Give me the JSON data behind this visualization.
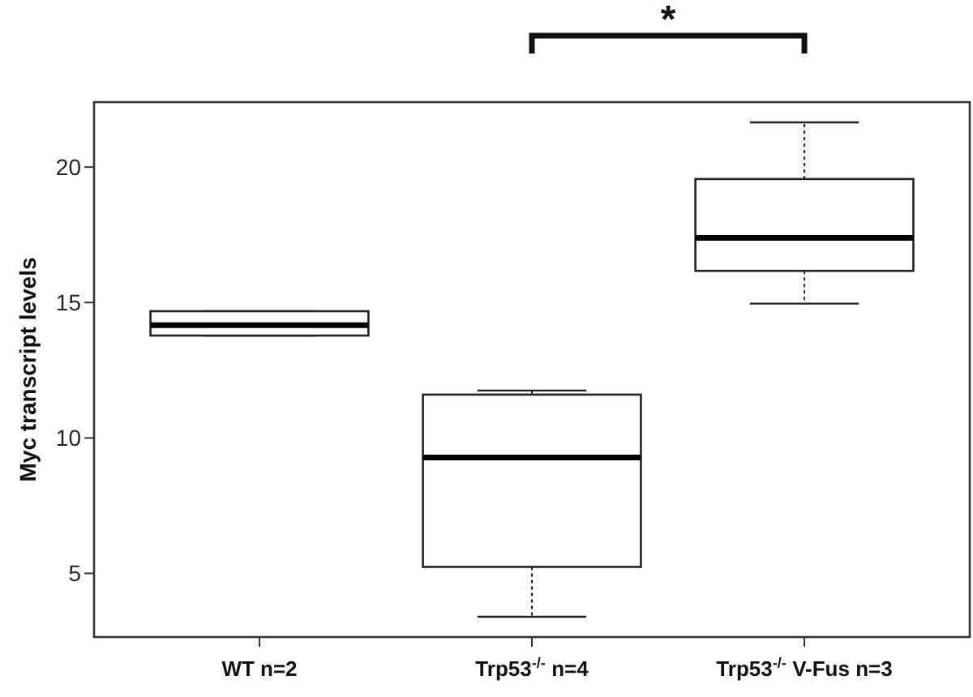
{
  "chart_data": {
    "type": "box",
    "ylabel": "Myc transcript levels",
    "categories": [
      "WT n=2",
      "Trp53$^{-/-}$ n=4",
      "Trp53$^{-/-}$ V-Fus n=3"
    ],
    "boxes": [
      {
        "low": 13.78,
        "q1": 13.78,
        "median": 14.16,
        "q3": 14.68,
        "high": 14.68
      },
      {
        "low": 3.4,
        "q1": 5.24,
        "median": 9.28,
        "q3": 11.6,
        "high": 11.75
      },
      {
        "low": 14.96,
        "q1": 16.17,
        "median": 17.39,
        "q3": 19.56,
        "high": 21.65
      }
    ],
    "ylim": [
      2.65,
      22.4
    ],
    "yticks": [
      5,
      10,
      15,
      20
    ],
    "annotations": [
      "*"
    ],
    "grid": false
  }
}
